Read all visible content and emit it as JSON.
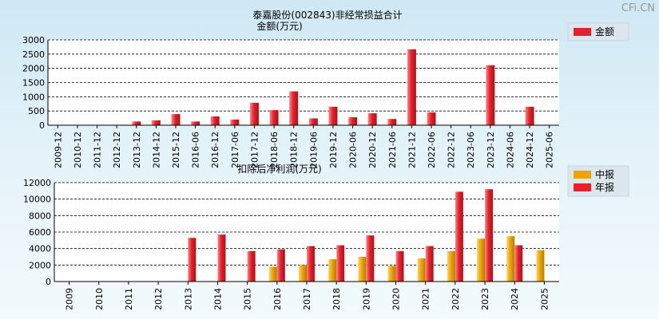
{
  "watermark": "CFi.CN",
  "charts": [
    {
      "type": "bar",
      "title": "泰嘉股份(002843)非经常损益合计",
      "subtitle": "金额(万元)",
      "ylim": [
        0,
        3000
      ],
      "yticks": [
        0,
        500,
        1000,
        1500,
        2000,
        2500,
        3000
      ],
      "categories": [
        "2009-12",
        "2010-12",
        "2011-12",
        "2012-12",
        "2013-12",
        "2014-12",
        "2015-12",
        "2016-06",
        "2016-12",
        "2017-06",
        "2017-12",
        "2018-06",
        "2018-12",
        "2019-06",
        "2019-12",
        "2020-06",
        "2020-12",
        "2021-06",
        "2021-12",
        "2022-06",
        "2022-12",
        "2023-06",
        "2023-12",
        "2024-06",
        "2024-12",
        "2025-06"
      ],
      "series": [
        {
          "name": "金额",
          "color": "#e8202a",
          "values": [
            0,
            0,
            0,
            0,
            130,
            170,
            390,
            130,
            310,
            200,
            790,
            530,
            1190,
            240,
            650,
            280,
            420,
            220,
            2670,
            450,
            0,
            0,
            2110,
            0,
            650,
            0
          ]
        }
      ],
      "legend": "top-right",
      "grid": true
    },
    {
      "type": "bar",
      "title": "扣除后净利润(万元)",
      "ylim": [
        0,
        12000
      ],
      "yticks": [
        0,
        2000,
        4000,
        6000,
        8000,
        10000,
        12000
      ],
      "categories": [
        "2009",
        "2010",
        "2011",
        "2012",
        "2013",
        "2014",
        "2015",
        "2016",
        "2017",
        "2018",
        "2019",
        "2020",
        "2021",
        "2022",
        "2023",
        "2024",
        "2025"
      ],
      "series": [
        {
          "name": "中报",
          "color": "#f3a300",
          "values": [
            0,
            0,
            0,
            0,
            0,
            0,
            0,
            1800,
            2000,
            2700,
            3000,
            1900,
            2800,
            3700,
            5200,
            5500,
            3800
          ]
        },
        {
          "name": "年报",
          "color": "#e8202a",
          "values": [
            0,
            0,
            0,
            0,
            5300,
            5700,
            3700,
            3900,
            4300,
            4400,
            5600,
            3700,
            4300,
            10900,
            11200,
            4400,
            0
          ]
        }
      ],
      "legend": "top-right",
      "grid": true
    }
  ]
}
